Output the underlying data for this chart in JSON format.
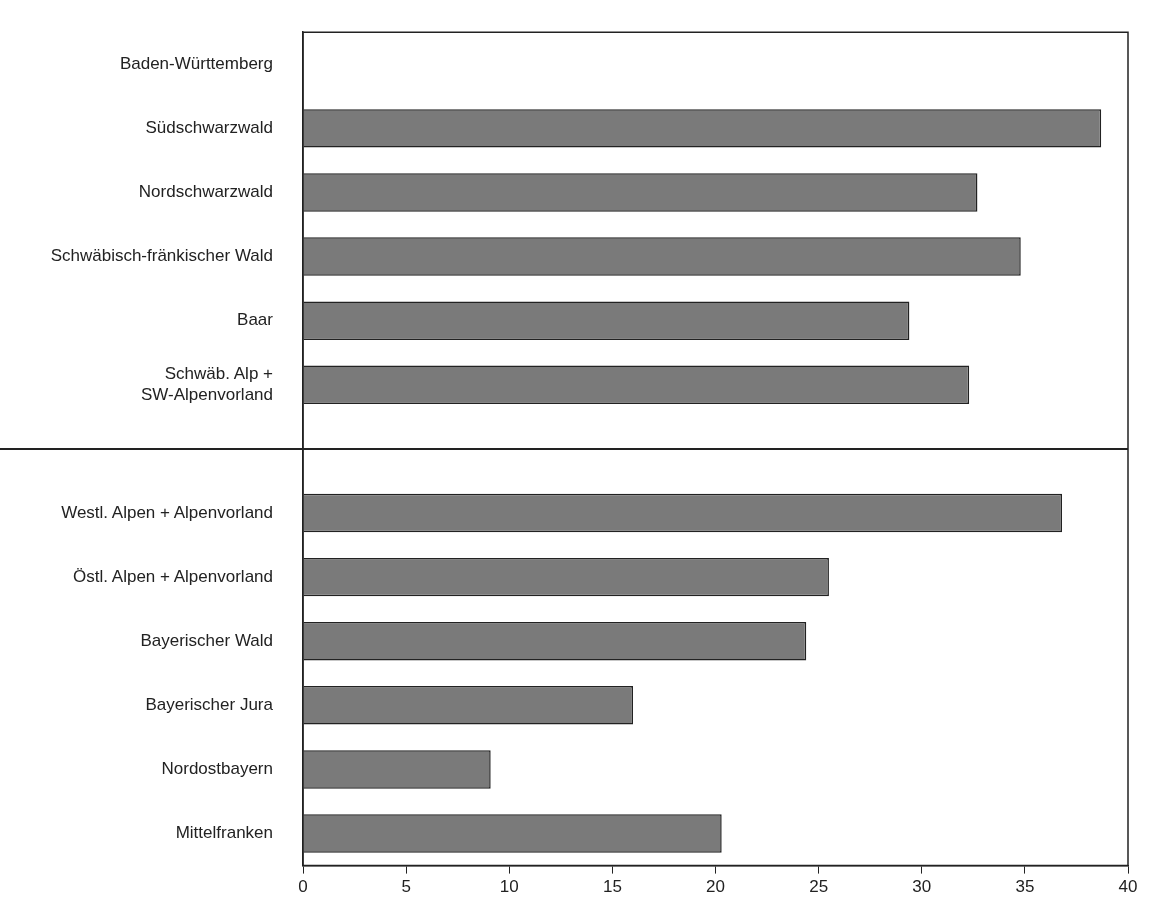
{
  "chart_data": {
    "type": "bar",
    "orientation": "horizontal",
    "categories": [
      "Baden-Württemberg",
      "Südschwarzwald",
      "Nordschwarzwald",
      "Schwäbisch-fränkischer Wald",
      "Baar",
      "Schwäb. Alp + SW-Alpenvorland",
      null,
      "Westl. Alpen + Alpenvorland",
      "Östl. Alpen + Alpenvorland",
      "Bayerischer Wald",
      "Bayerischer Jura",
      "Nordostbayern",
      "Mittelfranken"
    ],
    "values": [
      null,
      38.7,
      32.7,
      34.8,
      29.4,
      32.3,
      null,
      36.8,
      25.5,
      24.4,
      16.0,
      9.1,
      20.3
    ],
    "color": "#7a7a7a",
    "xlim": [
      0,
      40
    ],
    "xticks": [
      0,
      5,
      10,
      15,
      20,
      25,
      30,
      35,
      40
    ],
    "grid": false,
    "legend": false
  }
}
